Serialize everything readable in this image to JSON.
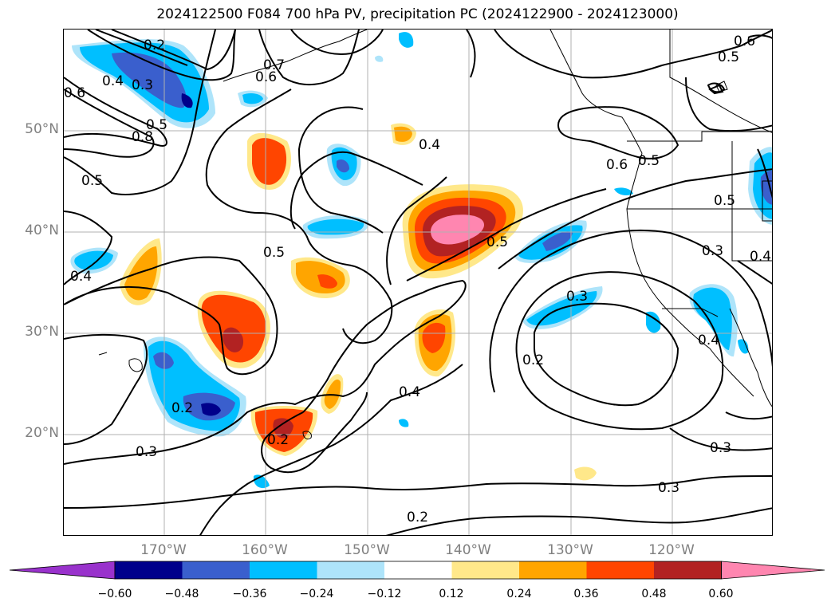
{
  "title": "2024122500 F084 700 hPa PV, precipitation PC (2024122900 - 2024123000)",
  "lat_labels": [
    "50°N",
    "40°N",
    "30°N",
    "20°N"
  ],
  "lon_labels": [
    "170°W",
    "160°W",
    "150°W",
    "140°W",
    "130°W",
    "120°W"
  ],
  "colorbar": {
    "ticks": [
      "−0.60",
      "−0.48",
      "−0.36",
      "−0.24",
      "−0.12",
      "0.12",
      "0.24",
      "0.36",
      "0.48",
      "0.60"
    ],
    "colors": [
      "#9932cc",
      "#00008b",
      "#3a5fcd",
      "#00bfff",
      "#aee4fa",
      "#ffffff",
      "#ffe88a",
      "#ffa500",
      "#ff4500",
      "#b22222",
      "#ff86b0"
    ]
  },
  "contour_labels": [
    "0.2",
    "0.3",
    "0.4",
    "0.5",
    "0.6",
    "0.7",
    "0.8"
  ]
}
